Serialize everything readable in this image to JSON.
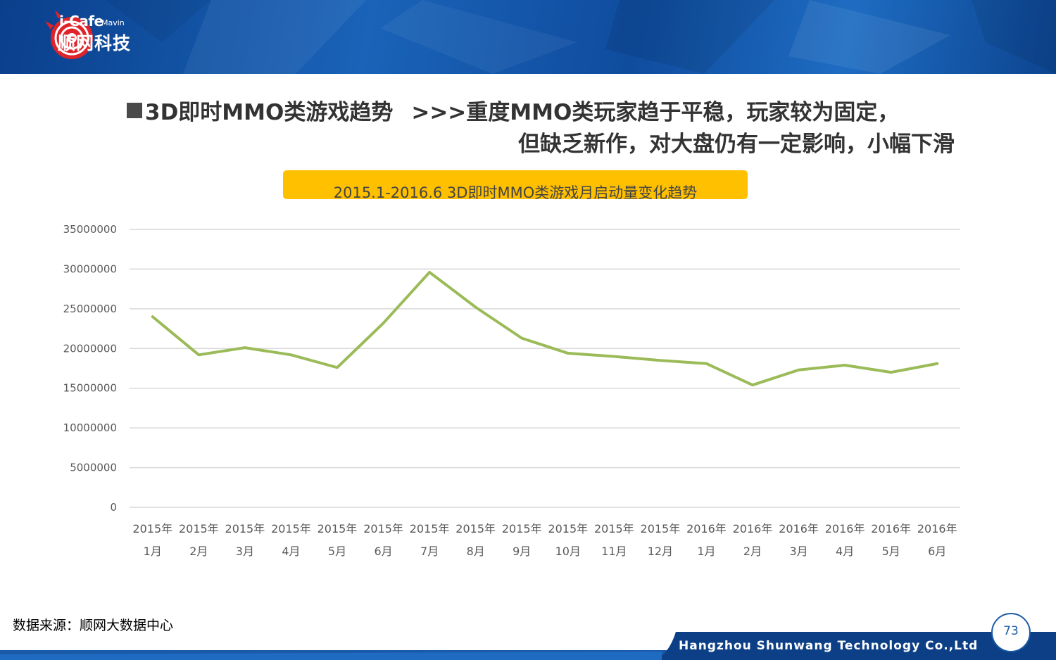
{
  "header": {
    "logo_brand": "i-Cafe",
    "logo_sub": "Mavin",
    "logo_cn": "顺网科技"
  },
  "heading": {
    "topic": "3D即时MMO类游戏趋势",
    "conclusion_line1": ">>>重度MMO类玩家趋于平稳，玩家较为固定，",
    "conclusion_line2": "但缺乏新作，对大盘仍有一定影响，小幅下滑"
  },
  "chart_data": {
    "type": "line",
    "title": "2015.1-2016.6 3D即时MMO类游戏月启动量变化趋势",
    "categories": [
      [
        "2015年",
        "1月"
      ],
      [
        "2015年",
        "2月"
      ],
      [
        "2015年",
        "3月"
      ],
      [
        "2015年",
        "4月"
      ],
      [
        "2015年",
        "5月"
      ],
      [
        "2015年",
        "6月"
      ],
      [
        "2015年",
        "7月"
      ],
      [
        "2015年",
        "8月"
      ],
      [
        "2015年",
        "9月"
      ],
      [
        "2015年",
        "10月"
      ],
      [
        "2015年",
        "11月"
      ],
      [
        "2015年",
        "12月"
      ],
      [
        "2016年",
        "1月"
      ],
      [
        "2016年",
        "2月"
      ],
      [
        "2016年",
        "3月"
      ],
      [
        "2016年",
        "4月"
      ],
      [
        "2016年",
        "5月"
      ],
      [
        "2016年",
        "6月"
      ]
    ],
    "series": [
      {
        "values": [
          24000000,
          19200000,
          20100000,
          19200000,
          17600000,
          23200000,
          29600000,
          25200000,
          21300000,
          19400000,
          19000000,
          18500000,
          18100000,
          15400000,
          17300000,
          17900000,
          17000000,
          18100000
        ],
        "color": "#9bbb59"
      }
    ],
    "yticks": [
      "0",
      "5000000",
      "10000000",
      "15000000",
      "20000000",
      "25000000",
      "30000000",
      "35000000"
    ],
    "ylim": [
      0,
      35000000
    ],
    "grid": true,
    "legend": "none"
  },
  "footer": {
    "source": "数据来源：顺网大数据中心",
    "company": "Hangzhou Shunwang Technology Co.,Ltd",
    "page_number": "73"
  },
  "colors": {
    "banner": "#1a63b8",
    "title_box": "#ffc000",
    "line": "#9bbb59",
    "logo_red": "#e0222a"
  }
}
